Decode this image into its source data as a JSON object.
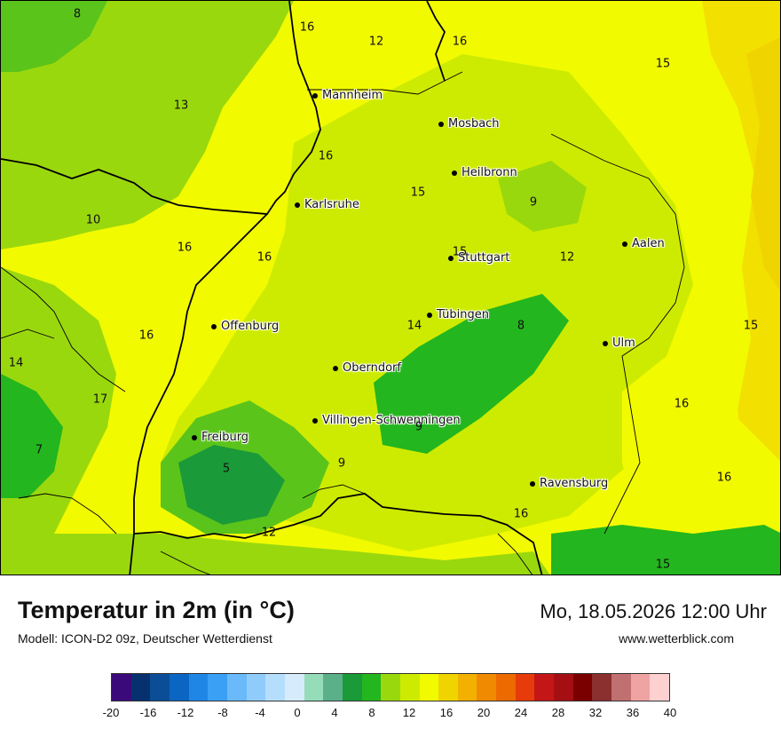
{
  "title": "Temperatur in 2m (in °C)",
  "model": "Modell: ICON-D2 09z, Deutscher Wetterdienst",
  "datetime": "Mo, 18.05.2026 12:00 Uhr",
  "site": "www.wetterblick.com",
  "cities": [
    "Mannheim",
    "Mosbach",
    "Heilbronn",
    "Karlsruhe",
    "Aalen",
    "Stuttgart",
    "Tübingen",
    "Offenburg",
    "Ulm",
    "Oberndorf",
    "Villingen-Schwenningen",
    "Freiburg",
    "Ravensburg"
  ],
  "temperatures": [
    "8",
    "16",
    "12",
    "16",
    "15",
    "13",
    "16",
    "15",
    "9",
    "10",
    "16",
    "16",
    "15",
    "12",
    "14",
    "8",
    "15",
    "16",
    "14",
    "17",
    "16",
    "9",
    "7",
    "5",
    "9",
    "16",
    "16",
    "12",
    "15"
  ],
  "legend": {
    "ticks": [
      "-20",
      "-16",
      "-12",
      "-8",
      "-4",
      "0",
      "4",
      "8",
      "12",
      "16",
      "20",
      "24",
      "28",
      "32",
      "36",
      "40"
    ],
    "colors": [
      "#3b0a7a",
      "#06316e",
      "#0b4d96",
      "#0a66c2",
      "#1f86e6",
      "#3aa0f5",
      "#6ab9fa",
      "#90ccfb",
      "#b5defc",
      "#d6ecfd",
      "#95dcb8",
      "#5bb08a",
      "#1a9a38",
      "#23b61e",
      "#9ad80e",
      "#cdeb00",
      "#f2fa00",
      "#f0d400",
      "#f2b000",
      "#f08a00",
      "#ec6a00",
      "#e63b0a",
      "#c41616",
      "#a50f14",
      "#7a0000",
      "#8b2f2f",
      "#c07070",
      "#f0a3a3",
      "#ffd0d0"
    ]
  }
}
